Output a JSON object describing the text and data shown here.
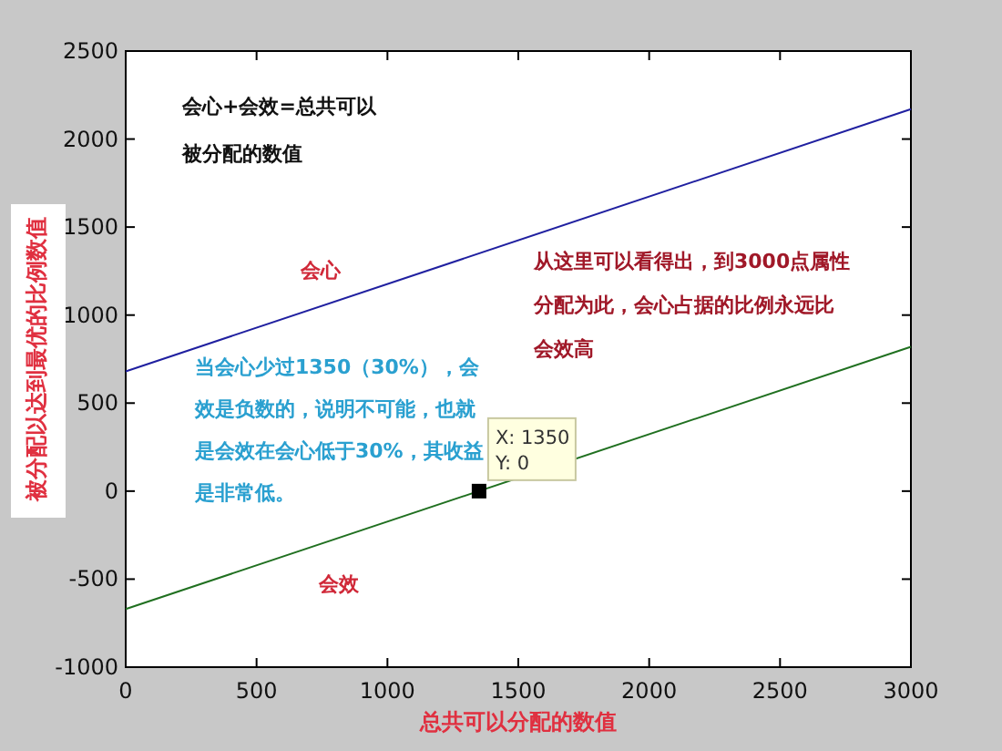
{
  "chart_data": {
    "type": "line",
    "xlabel": "总共可以分配的数值",
    "ylabel": "被分配以达到最优的比例数值",
    "x": [
      0,
      3000
    ],
    "series": [
      {
        "name": "会心",
        "color": "#2020a0",
        "values": [
          680,
          2170
        ]
      },
      {
        "name": "会效",
        "color": "#207020",
        "values": [
          -670,
          820
        ]
      }
    ],
    "xlim": [
      0,
      3000
    ],
    "xticks": [
      0,
      500,
      1000,
      1500,
      2000,
      2500,
      3000
    ],
    "ylim": [
      -1000,
      2500
    ],
    "yticks": [
      -1000,
      -500,
      0,
      500,
      1000,
      1500,
      2000,
      2500
    ],
    "grid": false,
    "legend": false,
    "annotations": [
      "会心+会效=总共可以被分配的数值",
      "从这里可以看得出，到3000点属性分配为此，会心占据的比例永远比会效高",
      "当会心少过1350（30%），会效是负数的，说明不可能，也就是会效在会心低于30%，其收益是非常低。",
      {
        "text": "X: 1350\nY: 0",
        "x": 1350,
        "y": 0
      }
    ]
  }
}
